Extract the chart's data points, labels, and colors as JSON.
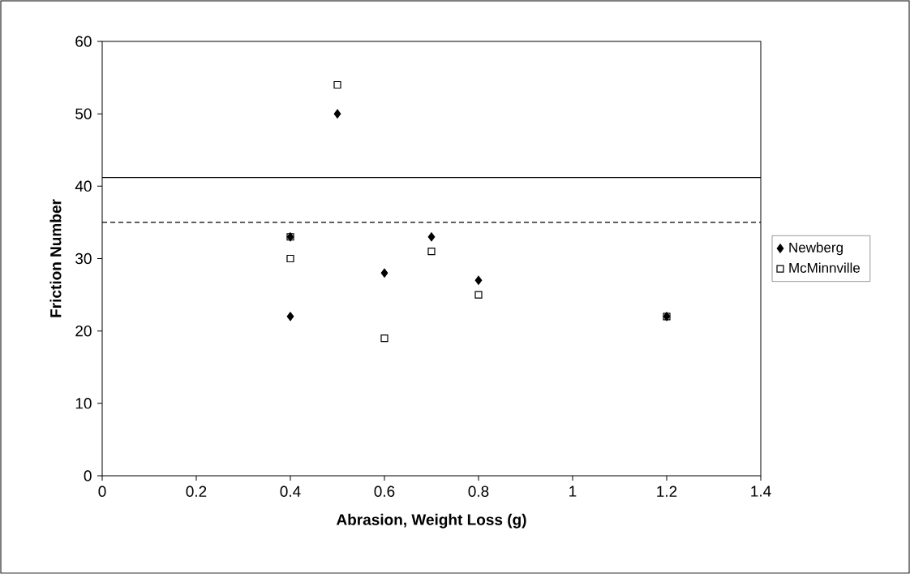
{
  "chart_data": {
    "type": "scatter",
    "xlabel": "Abrasion, Weight Loss (g)",
    "ylabel": "Friction Number",
    "xlim": [
      0,
      1.4
    ],
    "xticks": [
      0,
      0.2,
      0.4,
      0.6,
      0.8,
      1,
      1.2,
      1.4
    ],
    "ylim": [
      0,
      60
    ],
    "yticks": [
      0,
      10,
      20,
      30,
      40,
      50,
      60
    ],
    "legend": "right",
    "series": [
      {
        "name": "Newberg",
        "color": "#000000",
        "marker": "diamond",
        "x": [
          0.4,
          0.4,
          0.5,
          0.6,
          0.7,
          0.8,
          1.2
        ],
        "values": [
          33,
          22,
          50,
          28,
          33,
          27,
          22
        ]
      },
      {
        "name": "McMinnville",
        "color": "#000000",
        "marker": "square",
        "x": [
          0.4,
          0.4,
          0.5,
          0.6,
          0.7,
          0.8,
          1.2
        ],
        "values": [
          33,
          30,
          54,
          19,
          31,
          25,
          22
        ]
      }
    ],
    "ref_lines": [
      {
        "axis": "y",
        "value": 41.2,
        "line_style": "solid",
        "color": "#000000"
      },
      {
        "axis": "y",
        "value": 35,
        "line_style": "dashed",
        "color": "#000000"
      }
    ]
  }
}
